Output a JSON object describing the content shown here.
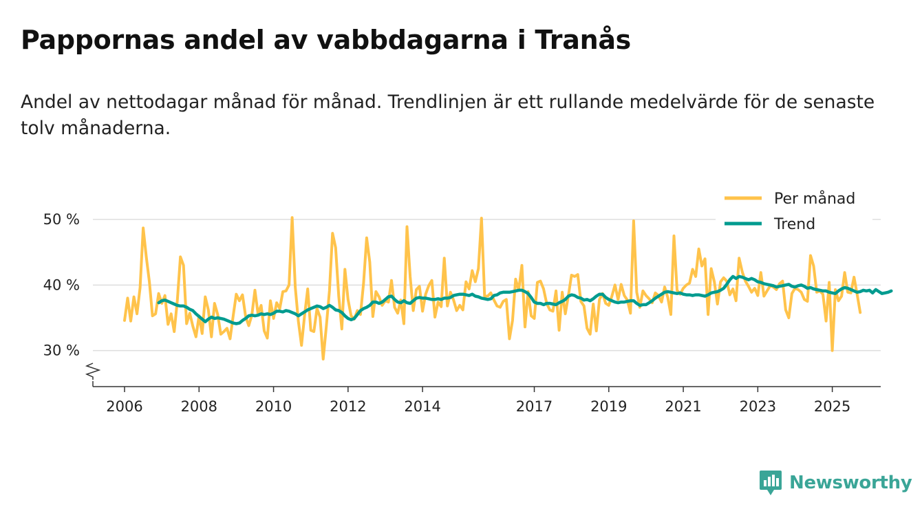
{
  "title": "Pappornas andel av vabbdagarna i Tranås",
  "subtitle": "Andel av nettodagar månad för månad. Trendlinjen är ett rullande medelvärde för de senaste tolv månaderna.",
  "brand": {
    "name": "Newsworthy"
  },
  "colors": {
    "monthly": "#ffc34b",
    "trend": "#009b8f",
    "grid": "#dddddd",
    "axis": "#333333",
    "brand": "#3aa597"
  },
  "chart_data": {
    "type": "line",
    "title": "Pappornas andel av vabbdagarna i Tranås",
    "xlabel": "",
    "ylabel": "",
    "ylim": [
      24.5,
      52
    ],
    "xlim": [
      2005.15,
      2026.3
    ],
    "y_ticks": [
      30,
      40,
      50
    ],
    "y_tick_labels": [
      "30 %",
      "40 %",
      "50 %"
    ],
    "x_ticks": [
      2006,
      2008,
      2010,
      2012,
      2014,
      2017,
      2019,
      2021,
      2023,
      2025
    ],
    "x_tick_labels": [
      "2006",
      "2008",
      "2010",
      "2012",
      "2014",
      "2017",
      "2019",
      "2021",
      "2023",
      "2025"
    ],
    "legend": {
      "position": "top-right",
      "entries": [
        "Per månad",
        "Trend"
      ]
    },
    "series": [
      {
        "name": "Per månad",
        "color": "#ffc34b",
        "x_start": 2006.0,
        "x_step": 0.08333,
        "values": [
          34.6,
          38.0,
          34.5,
          38.2,
          35.6,
          39.6,
          48.7,
          44.3,
          40.5,
          35.3,
          35.6,
          38.7,
          37.2,
          38.4,
          34.0,
          35.6,
          32.9,
          37.6,
          44.3,
          43.0,
          34.1,
          35.7,
          33.7,
          32.1,
          35.3,
          32.6,
          38.2,
          36.2,
          32.1,
          37.2,
          35.5,
          32.5,
          32.9,
          33.4,
          31.8,
          35.3,
          38.6,
          37.6,
          38.5,
          35.2,
          33.8,
          35.4,
          39.2,
          35.6,
          36.9,
          33.0,
          31.9,
          37.6,
          34.9,
          37.3,
          36.4,
          39.0,
          39.1,
          40.0,
          50.3,
          39.7,
          34.5,
          30.8,
          35.4,
          39.4,
          33.1,
          32.9,
          36.4,
          35.1,
          28.7,
          33.6,
          39.1,
          47.9,
          45.7,
          38.3,
          33.3,
          42.4,
          37.8,
          35.3,
          34.8,
          36.1,
          35.5,
          40.3,
          47.2,
          43.5,
          35.2,
          39.0,
          38.2,
          36.9,
          37.6,
          37.4,
          40.7,
          36.6,
          35.7,
          37.7,
          34.1,
          48.9,
          41.3,
          36.1,
          39.3,
          39.8,
          36.0,
          38.6,
          39.9,
          40.7,
          35.1,
          37.4,
          36.7,
          44.1,
          36.8,
          38.9,
          37.7,
          36.1,
          36.9,
          36.2,
          40.5,
          39.4,
          42.2,
          40.5,
          42.5,
          50.2,
          38.3,
          38.3,
          38.8,
          37.7,
          36.8,
          36.6,
          37.5,
          37.8,
          31.8,
          34.6,
          40.9,
          39.2,
          43.0,
          33.6,
          39.0,
          35.3,
          34.9,
          40.4,
          40.6,
          39.4,
          37.2,
          36.2,
          36.0,
          39.1,
          33.1,
          38.9,
          35.6,
          38.4,
          41.5,
          41.3,
          41.6,
          37.5,
          36.8,
          33.4,
          32.5,
          37.1,
          33.0,
          37.8,
          38.7,
          37.2,
          36.9,
          38.3,
          40.0,
          37.8,
          40.1,
          38.4,
          37.7,
          35.7,
          49.8,
          38.9,
          36.6,
          39.1,
          38.4,
          37.9,
          37.3,
          38.8,
          38.4,
          37.4,
          39.7,
          38.1,
          35.5,
          47.5,
          39.2,
          38.6,
          39.5,
          40.0,
          40.3,
          42.4,
          41.3,
          45.5,
          42.9,
          44.0,
          35.5,
          42.5,
          40.5,
          37.1,
          40.5,
          41.1,
          40.6,
          38.5,
          39.4,
          37.6,
          44.1,
          42.0,
          40.6,
          39.8,
          38.9,
          39.5,
          38.4,
          41.9,
          38.3,
          39.1,
          39.9,
          39.7,
          39.3,
          40.2,
          40.6,
          36.2,
          35.0,
          38.7,
          39.5,
          39.3,
          38.9,
          37.8,
          37.5,
          44.5,
          42.9,
          38.9,
          39.1,
          38.6,
          34.5,
          40.4,
          30.0,
          39.3,
          37.6,
          38.3,
          41.9,
          38.9,
          38.8,
          41.2,
          38.6,
          35.8
        ]
      },
      {
        "name": "Trend",
        "color": "#009b8f",
        "x_start": 2006.917,
        "x_step": 0.08333,
        "values": [
          37.3,
          37.6,
          37.7,
          37.5,
          37.3,
          37.1,
          36.9,
          36.8,
          36.8,
          36.6,
          36.3,
          36.1,
          35.6,
          35.2,
          34.8,
          34.4,
          34.8,
          35.1,
          34.9,
          35.0,
          34.9,
          34.8,
          34.6,
          34.4,
          34.2,
          34.1,
          34.2,
          34.6,
          34.9,
          35.3,
          35.4,
          35.3,
          35.4,
          35.6,
          35.5,
          35.6,
          35.5,
          35.7,
          36.0,
          36.0,
          35.9,
          36.1,
          36.0,
          35.8,
          35.6,
          35.3,
          35.6,
          35.9,
          36.2,
          36.4,
          36.6,
          36.8,
          36.7,
          36.4,
          36.6,
          36.9,
          36.6,
          36.2,
          36.1,
          35.8,
          35.3,
          34.9,
          34.7,
          34.9,
          35.5,
          36.1,
          36.4,
          36.6,
          36.9,
          37.4,
          37.4,
          37.2,
          37.4,
          37.8,
          38.2,
          38.3,
          37.8,
          37.4,
          37.3,
          37.6,
          37.3,
          37.2,
          37.6,
          38.0,
          38.1,
          38.0,
          38.0,
          37.9,
          37.8,
          37.8,
          37.9,
          37.8,
          38.0,
          38.0,
          38.1,
          38.4,
          38.5,
          38.6,
          38.6,
          38.5,
          38.4,
          38.6,
          38.3,
          38.2,
          38.0,
          37.9,
          37.8,
          37.9,
          38.4,
          38.5,
          38.8,
          38.9,
          38.9,
          38.9,
          39.0,
          39.1,
          39.2,
          39.2,
          39.0,
          38.7,
          38.1,
          37.4,
          37.2,
          37.2,
          37.0,
          37.2,
          37.2,
          37.1,
          37.0,
          37.3,
          37.5,
          37.8,
          38.3,
          38.5,
          38.4,
          38.1,
          38.0,
          37.7,
          37.8,
          37.6,
          37.9,
          38.3,
          38.6,
          38.6,
          38.1,
          37.8,
          37.6,
          37.4,
          37.3,
          37.4,
          37.4,
          37.5,
          37.6,
          37.6,
          37.2,
          36.9,
          37.0,
          37.0,
          37.3,
          37.6,
          38.0,
          38.3,
          38.6,
          38.9,
          39.0,
          38.9,
          38.8,
          38.7,
          38.8,
          38.6,
          38.5,
          38.5,
          38.4,
          38.5,
          38.5,
          38.4,
          38.3,
          38.5,
          38.8,
          38.9,
          39.0,
          39.2,
          39.5,
          40.1,
          40.8,
          41.3,
          41.0,
          41.3,
          41.2,
          41.0,
          40.8,
          41.0,
          40.8,
          40.5,
          40.4,
          40.2,
          40.1,
          40.0,
          39.9,
          39.7,
          39.8,
          39.9,
          40.0,
          40.1,
          39.8,
          39.7,
          39.9,
          40.0,
          39.8,
          39.5,
          39.6,
          39.4,
          39.3,
          39.2,
          39.1,
          39.1,
          38.9,
          38.8,
          38.7,
          39.1,
          39.4,
          39.6,
          39.5,
          39.3,
          39.1,
          38.9,
          39.0,
          39.2,
          39.1,
          39.2,
          38.8,
          39.3,
          39.0,
          38.7,
          38.8,
          38.9,
          39.1
        ]
      }
    ]
  }
}
